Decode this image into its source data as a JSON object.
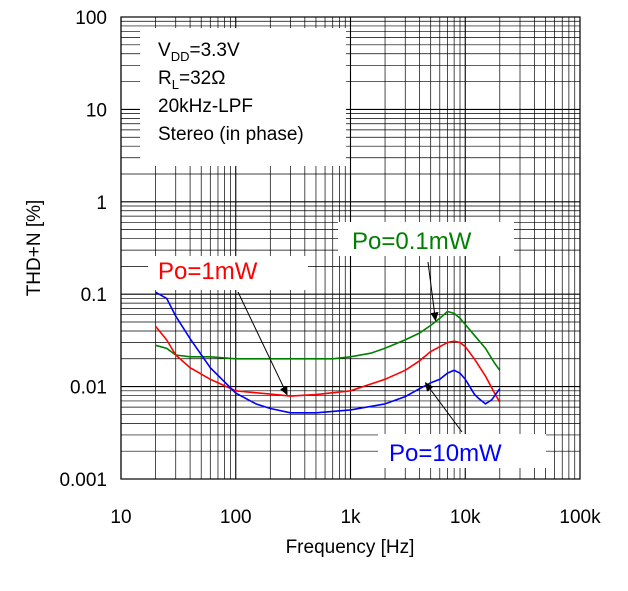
{
  "chart_data": {
    "type": "line",
    "title": "",
    "xlabel": "Frequency [Hz]",
    "ylabel": "THD+N [%]",
    "x_scale": "log",
    "y_scale": "log",
    "xlim": [
      10,
      100000
    ],
    "ylim": [
      0.001,
      100
    ],
    "x_ticks": [
      10,
      100,
      1000,
      10000,
      100000
    ],
    "x_tick_labels": [
      "10",
      "100",
      "1k",
      "10k",
      "100k"
    ],
    "y_ticks": [
      0.001,
      0.01,
      0.1,
      1,
      10,
      100
    ],
    "y_tick_labels": [
      "0.001",
      "0.01",
      "0.1",
      "1",
      "10",
      "100"
    ],
    "grid": true,
    "conditions": {
      "vdd_main": "V",
      "vdd_sub": "DD",
      "vdd_value": "=3.3V",
      "rl_main": "R",
      "rl_sub": "L",
      "rl_value": "=32Ω",
      "filter": "20kHz-LPF",
      "mode": "Stereo (in phase)"
    },
    "series": [
      {
        "name": "Po=0.1mW",
        "color": "#008000",
        "x": [
          20,
          25,
          30,
          40,
          60,
          100,
          200,
          400,
          700,
          1000,
          1500,
          2000,
          3000,
          4000,
          5000,
          6000,
          7000,
          8000,
          9000,
          10000,
          12000,
          15000,
          18000,
          20000
        ],
        "y": [
          0.028,
          0.026,
          0.022,
          0.021,
          0.021,
          0.02,
          0.02,
          0.02,
          0.02,
          0.021,
          0.023,
          0.026,
          0.032,
          0.038,
          0.046,
          0.055,
          0.065,
          0.062,
          0.055,
          0.047,
          0.036,
          0.026,
          0.018,
          0.015
        ]
      },
      {
        "name": "Po=1mW",
        "color": "#ff0000",
        "x": [
          20,
          25,
          30,
          40,
          60,
          100,
          200,
          300,
          500,
          1000,
          2000,
          3000,
          4000,
          5000,
          6000,
          7000,
          8000,
          9000,
          10000,
          12000,
          15000,
          18000,
          20000
        ],
        "y": [
          0.045,
          0.032,
          0.022,
          0.016,
          0.012,
          0.009,
          0.0083,
          0.0079,
          0.0082,
          0.009,
          0.012,
          0.015,
          0.019,
          0.024,
          0.027,
          0.03,
          0.031,
          0.03,
          0.027,
          0.02,
          0.013,
          0.0085,
          0.0068
        ]
      },
      {
        "name": "Po=10mW",
        "color": "#0000ff",
        "x": [
          20,
          25,
          30,
          40,
          60,
          100,
          150,
          200,
          300,
          500,
          1000,
          2000,
          3000,
          4000,
          5000,
          6000,
          7000,
          8000,
          9000,
          10000,
          12000,
          13000,
          15000,
          17000,
          20000
        ],
        "y": [
          0.105,
          0.09,
          0.058,
          0.033,
          0.016,
          0.0085,
          0.0065,
          0.0058,
          0.0052,
          0.0052,
          0.0056,
          0.0065,
          0.0078,
          0.0095,
          0.011,
          0.012,
          0.014,
          0.015,
          0.014,
          0.012,
          0.0083,
          0.0075,
          0.0065,
          0.0072,
          0.0095
        ]
      }
    ],
    "labels": {
      "green": "Po=0.1mW",
      "red": "Po=1mW",
      "blue": "Po=10mW"
    },
    "callouts": [
      {
        "series": "Po=1mW",
        "target_x": 280,
        "target_y": 0.0082
      },
      {
        "series": "Po=0.1mW",
        "target_x": 5500,
        "target_y": 0.052
      },
      {
        "series": "Po=10mW",
        "target_x": 4500,
        "target_y": 0.011
      }
    ]
  }
}
